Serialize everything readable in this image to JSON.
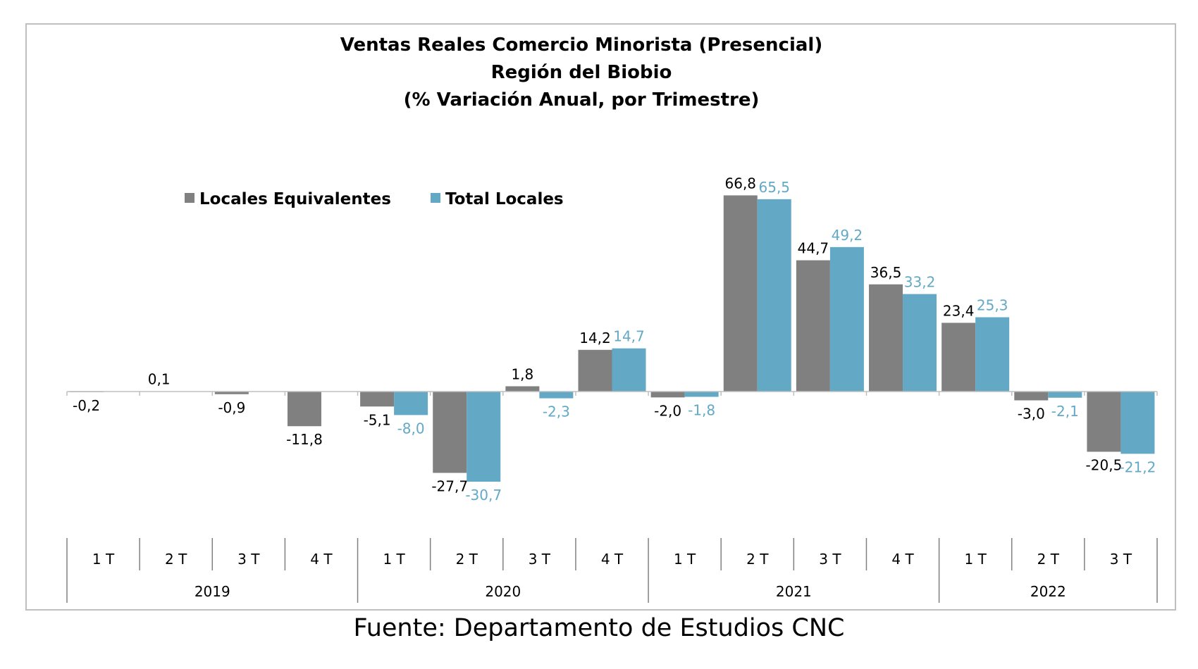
{
  "chart_data": {
    "type": "bar",
    "title": [
      "Ventas Reales Comercio Minorista (Presencial)",
      "Región del Biobio",
      "(% Variación Anual, por Trimestre)"
    ],
    "categories": [
      "1 T",
      "2 T",
      "3 T",
      "4 T",
      "1 T",
      "2 T",
      "3 T",
      "4 T",
      "1 T",
      "2 T",
      "3 T",
      "4 T",
      "1 T",
      "2 T",
      "3 T"
    ],
    "groups": [
      {
        "label": "2019",
        "count": 4
      },
      {
        "label": "2020",
        "count": 4
      },
      {
        "label": "2021",
        "count": 4
      },
      {
        "label": "2022",
        "count": 3
      }
    ],
    "series": [
      {
        "name": "Locales Equivalentes",
        "color": "#808080",
        "values": [
          -0.2,
          0.1,
          -0.9,
          -11.8,
          -5.1,
          -27.7,
          1.8,
          14.2,
          -2.0,
          66.8,
          44.7,
          36.5,
          23.4,
          -3.0,
          -20.5
        ],
        "labels": [
          "-0,2",
          "0,1",
          "-0,9",
          "-11,8",
          "-5,1",
          "-27,7",
          "1,8",
          "14,2",
          "-2,0",
          "66,8",
          "44,7",
          "36,5",
          "23,4",
          "-3,0",
          "-20,5"
        ]
      },
      {
        "name": "Total Locales",
        "color": "#63A9C6",
        "values": [
          null,
          null,
          null,
          null,
          -8.0,
          -30.7,
          -2.3,
          14.7,
          -1.8,
          65.5,
          49.2,
          33.2,
          25.3,
          -2.1,
          -21.2
        ],
        "labels": [
          "",
          "",
          "",
          "",
          "-8,0",
          "-30,7",
          "-2,3",
          "14,7",
          "-1,8",
          "65,5",
          "49,2",
          "33,2",
          "25,3",
          "-2,1",
          "-21,2"
        ]
      }
    ],
    "label_colors": [
      "#000000",
      "#63A9C6"
    ],
    "legend_position": "top-left",
    "grid": false
  },
  "source": "Fuente: Departamento de Estudios CNC"
}
